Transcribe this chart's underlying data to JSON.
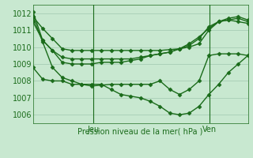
{
  "background_color": "#c8e8d0",
  "grid_color": "#a0c8b0",
  "line_color": "#1a6b1a",
  "xlabel": "Pression niveau de la mer( hPa )",
  "ylim": [
    1005.5,
    1012.5
  ],
  "yticks": [
    1006,
    1007,
    1008,
    1009,
    1010,
    1011,
    1012
  ],
  "vline_positions": [
    0.28,
    0.82
  ],
  "vline_labels": [
    "Jeu",
    "Ven"
  ],
  "series": [
    [
      1011.8,
      1011.1,
      1010.5,
      1009.9,
      1009.8,
      1009.8,
      1009.8,
      1009.8,
      1009.8,
      1009.8,
      1009.8,
      1009.8,
      1009.8,
      1009.8,
      1009.85,
      1009.9,
      1010.0,
      1010.2,
      1011.0,
      1011.5,
      1011.7,
      1011.8,
      1011.6
    ],
    [
      1011.5,
      1010.4,
      1009.8,
      1009.4,
      1009.3,
      1009.3,
      1009.3,
      1009.3,
      1009.3,
      1009.3,
      1009.3,
      1009.4,
      1009.5,
      1009.6,
      1009.7,
      1009.9,
      1010.1,
      1010.5,
      1011.2,
      1011.5,
      1011.6,
      1011.7,
      1011.5
    ],
    [
      1012.1,
      1010.4,
      1009.8,
      1009.1,
      1009.0,
      1009.0,
      1009.0,
      1009.1,
      1009.1,
      1009.1,
      1009.2,
      1009.3,
      1009.5,
      1009.6,
      1009.7,
      1009.9,
      1010.2,
      1010.6,
      1011.1,
      1011.5,
      1011.6,
      1011.5,
      1011.4
    ],
    [
      1011.8,
      1010.3,
      1008.8,
      1008.2,
      1008.0,
      1007.8,
      1007.7,
      1007.75,
      1007.8,
      1007.8,
      1007.8,
      1007.8,
      1007.8,
      1008.0,
      1007.5,
      1007.2,
      1007.5,
      1008.0,
      1009.5,
      1009.6,
      1009.6,
      1009.6,
      1009.5
    ],
    [
      1008.8,
      1008.1,
      1008.0,
      1008.0,
      1007.8,
      1007.8,
      1007.8,
      1007.8,
      1007.5,
      1007.2,
      1007.1,
      1007.0,
      1006.8,
      1006.5,
      1006.1,
      1006.0,
      1006.1,
      1006.5,
      1007.2,
      1007.8,
      1008.5,
      1009.0,
      1009.5
    ]
  ],
  "n_points": 23,
  "markersize": 2.5,
  "linewidth": 1.0
}
